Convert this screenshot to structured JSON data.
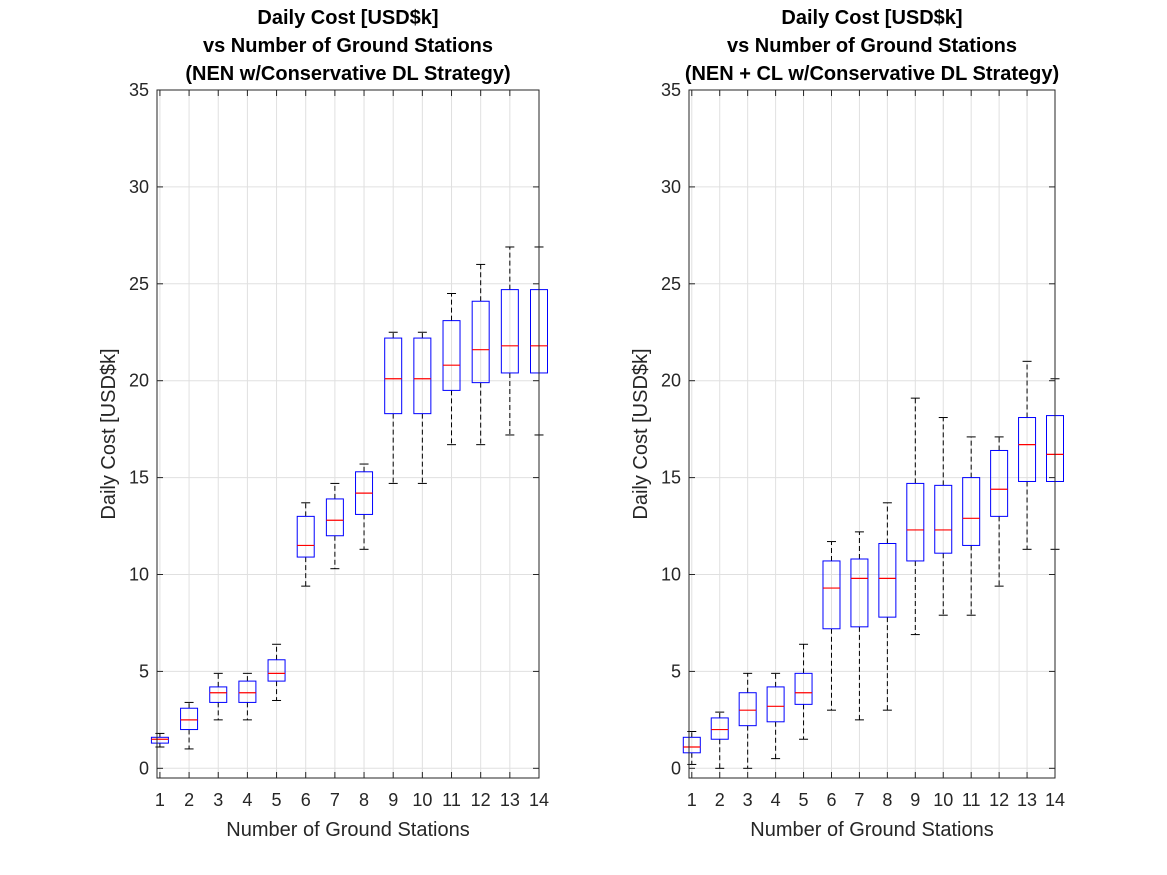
{
  "chart_data": [
    {
      "type": "box",
      "title": [
        "Daily Cost [USD$k]",
        "vs Number of Ground Stations",
        "(NEN w/Conservative DL Strategy)"
      ],
      "xlabel": "Number of Ground Stations",
      "ylabel": "Daily Cost [USD$k]",
      "ylim": [
        -0.5,
        35
      ],
      "yticks": [
        0,
        5,
        10,
        15,
        20,
        25,
        30,
        35
      ],
      "xlim": [
        0.9,
        14
      ],
      "xticks": [
        1,
        2,
        3,
        4,
        5,
        6,
        7,
        8,
        9,
        10,
        11,
        12,
        13,
        14
      ],
      "grid": true,
      "boxes": [
        {
          "x": 1,
          "whisker_low": 1.1,
          "q1": 1.3,
          "median": 1.5,
          "q3": 1.6,
          "whisker_high": 1.8
        },
        {
          "x": 2,
          "whisker_low": 1.0,
          "q1": 2.0,
          "median": 2.5,
          "q3": 3.1,
          "whisker_high": 3.4
        },
        {
          "x": 3,
          "whisker_low": 2.5,
          "q1": 3.4,
          "median": 3.9,
          "q3": 4.2,
          "whisker_high": 4.9
        },
        {
          "x": 4,
          "whisker_low": 2.5,
          "q1": 3.4,
          "median": 3.9,
          "q3": 4.5,
          "whisker_high": 4.9
        },
        {
          "x": 5,
          "whisker_low": 3.5,
          "q1": 4.5,
          "median": 4.9,
          "q3": 5.6,
          "whisker_high": 6.4
        },
        {
          "x": 6,
          "whisker_low": 9.4,
          "q1": 10.9,
          "median": 11.5,
          "q3": 13.0,
          "whisker_high": 13.7
        },
        {
          "x": 7,
          "whisker_low": 10.3,
          "q1": 12.0,
          "median": 12.8,
          "q3": 13.9,
          "whisker_high": 14.7
        },
        {
          "x": 8,
          "whisker_low": 11.3,
          "q1": 13.1,
          "median": 14.2,
          "q3": 15.3,
          "whisker_high": 15.7
        },
        {
          "x": 9,
          "whisker_low": 14.7,
          "q1": 18.3,
          "median": 20.1,
          "q3": 22.2,
          "whisker_high": 22.5
        },
        {
          "x": 10,
          "whisker_low": 14.7,
          "q1": 18.3,
          "median": 20.1,
          "q3": 22.2,
          "whisker_high": 22.5
        },
        {
          "x": 11,
          "whisker_low": 16.7,
          "q1": 19.5,
          "median": 20.8,
          "q3": 23.1,
          "whisker_high": 24.5
        },
        {
          "x": 12,
          "whisker_low": 16.7,
          "q1": 19.9,
          "median": 21.6,
          "q3": 24.1,
          "whisker_high": 26.0
        },
        {
          "x": 13,
          "whisker_low": 17.2,
          "q1": 20.4,
          "median": 21.8,
          "q3": 24.7,
          "whisker_high": 26.9
        },
        {
          "x": 14,
          "whisker_low": 17.2,
          "q1": 20.4,
          "median": 21.8,
          "q3": 24.7,
          "whisker_high": 26.9
        }
      ]
    },
    {
      "type": "box",
      "title": [
        "Daily Cost [USD$k]",
        "vs Number of Ground Stations",
        "(NEN + CL w/Conservative DL Strategy)"
      ],
      "xlabel": "Number of Ground Stations",
      "ylabel": "Daily Cost [USD$k]",
      "ylim": [
        -0.5,
        35
      ],
      "yticks": [
        0,
        5,
        10,
        15,
        20,
        25,
        30,
        35
      ],
      "xlim": [
        0.9,
        14
      ],
      "xticks": [
        1,
        2,
        3,
        4,
        5,
        6,
        7,
        8,
        9,
        10,
        11,
        12,
        13,
        14
      ],
      "grid": true,
      "boxes": [
        {
          "x": 1,
          "whisker_low": 0.2,
          "q1": 0.8,
          "median": 1.1,
          "q3": 1.6,
          "whisker_high": 1.9
        },
        {
          "x": 2,
          "whisker_low": 0.0,
          "q1": 1.5,
          "median": 2.0,
          "q3": 2.6,
          "whisker_high": 2.9
        },
        {
          "x": 3,
          "whisker_low": 0.0,
          "q1": 2.2,
          "median": 3.0,
          "q3": 3.9,
          "whisker_high": 4.9
        },
        {
          "x": 4,
          "whisker_low": 0.5,
          "q1": 2.4,
          "median": 3.2,
          "q3": 4.2,
          "whisker_high": 4.9
        },
        {
          "x": 5,
          "whisker_low": 1.5,
          "q1": 3.3,
          "median": 3.9,
          "q3": 4.9,
          "whisker_high": 6.4
        },
        {
          "x": 6,
          "whisker_low": 3.0,
          "q1": 7.2,
          "median": 9.3,
          "q3": 10.7,
          "whisker_high": 11.7
        },
        {
          "x": 7,
          "whisker_low": 2.5,
          "q1": 7.3,
          "median": 9.8,
          "q3": 10.8,
          "whisker_high": 12.2
        },
        {
          "x": 8,
          "whisker_low": 3.0,
          "q1": 7.8,
          "median": 9.8,
          "q3": 11.6,
          "whisker_high": 13.7
        },
        {
          "x": 9,
          "whisker_low": 6.9,
          "q1": 10.7,
          "median": 12.3,
          "q3": 14.7,
          "whisker_high": 19.1
        },
        {
          "x": 10,
          "whisker_low": 7.9,
          "q1": 11.1,
          "median": 12.3,
          "q3": 14.6,
          "whisker_high": 18.1
        },
        {
          "x": 11,
          "whisker_low": 7.9,
          "q1": 11.5,
          "median": 12.9,
          "q3": 15.0,
          "whisker_high": 17.1
        },
        {
          "x": 12,
          "whisker_low": 9.4,
          "q1": 13.0,
          "median": 14.4,
          "q3": 16.4,
          "whisker_high": 17.1
        },
        {
          "x": 13,
          "whisker_low": 11.3,
          "q1": 14.8,
          "median": 16.7,
          "q3": 18.1,
          "whisker_high": 21.0
        },
        {
          "x": 14,
          "whisker_low": 11.3,
          "q1": 14.8,
          "median": 16.2,
          "q3": 18.2,
          "whisker_high": 20.1
        }
      ]
    }
  ],
  "style": {
    "box_color": "#0000ff",
    "median_color": "#ff0000",
    "whisker_color": "#000000",
    "grid_color": "#e0e0e0",
    "axis_color": "#262626"
  }
}
